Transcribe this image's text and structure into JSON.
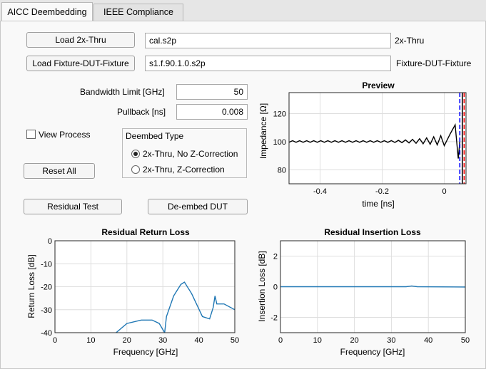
{
  "tabs": [
    {
      "label": "AICC Deembedding",
      "active": true
    },
    {
      "label": "IEEE Compliance",
      "active": false
    }
  ],
  "files": {
    "load_thru_label": "Load 2x-Thru",
    "thru_value": "cal.s2p",
    "thru_tag": "2x-Thru",
    "load_fixture_label": "Load Fixture-DUT-Fixture",
    "fixture_value": "s1.f.90.1.0.s2p",
    "fixture_tag": "Fixture-DUT-Fixture"
  },
  "params": {
    "bandwidth_label": "Bandwidth Limit [GHz]",
    "bandwidth_value": "50",
    "pullback_label": "Pullback [ns]",
    "pullback_value": "0.008"
  },
  "view_process": {
    "label": "View Process",
    "checked": false
  },
  "deembed_type": {
    "title": "Deembed Type",
    "options": [
      {
        "label": "2x-Thru, No Z-Correction",
        "selected": true
      },
      {
        "label": "2x-Thru, Z-Correction",
        "selected": false
      }
    ]
  },
  "buttons": {
    "reset": "Reset All",
    "residual": "Residual Test",
    "deembed": "De-embed DUT"
  },
  "chart_data": [
    {
      "type": "line",
      "title": "Preview",
      "xlabel": "time [ns]",
      "ylabel": "Impedance [Ω]",
      "xlim": [
        -0.5,
        0.07
      ],
      "ylim": [
        70,
        135
      ],
      "xticks": [
        "-0.4",
        "-0.2",
        "0"
      ],
      "yticks": [
        "80",
        "100",
        "120"
      ],
      "grid": true,
      "series": [
        {
          "color": "#000000",
          "x": [
            -0.5,
            0.0,
            0.02,
            0.035,
            0.045,
            0.05
          ],
          "y": [
            100,
            101,
            106,
            112,
            88,
            100
          ]
        }
      ],
      "markers": [
        {
          "x": 0.05,
          "color": "#0000ff"
        },
        {
          "x": 0.058,
          "color": "#000000"
        },
        {
          "x": 0.064,
          "color": "#ff0000"
        }
      ]
    },
    {
      "type": "line",
      "title": "Residual Return Loss",
      "xlabel": "Frequency [GHz]",
      "ylabel": "Return Loss [dB]",
      "xlim": [
        0,
        50
      ],
      "ylim": [
        -40,
        0
      ],
      "xticks": [
        "0",
        "10",
        "20",
        "30",
        "40",
        "50"
      ],
      "yticks": [
        "0",
        "-10",
        "-20",
        "-30",
        "-40"
      ],
      "grid": true,
      "series": [
        {
          "color": "#1f77b4",
          "x": [
            17,
            20,
            24,
            27,
            29,
            30.5,
            31,
            33,
            35,
            36,
            38,
            41,
            43,
            44,
            44.5,
            45,
            47,
            50
          ],
          "y": [
            -40,
            -36,
            -34.5,
            -34.5,
            -36,
            -40,
            -33,
            -24,
            -19,
            -18,
            -23,
            -33,
            -34,
            -29,
            -24,
            -27.5,
            -27.5,
            -30
          ]
        }
      ]
    },
    {
      "type": "line",
      "title": "Residual Insertion Loss",
      "xlabel": "Frequency [GHz]",
      "ylabel": "Insertion Loss [dB]",
      "xlim": [
        0,
        50
      ],
      "ylim": [
        -3,
        3
      ],
      "xticks": [
        "0",
        "10",
        "20",
        "30",
        "40",
        "50"
      ],
      "yticks": [
        "2",
        "0",
        "-2"
      ],
      "grid": true,
      "series": [
        {
          "color": "#1f77b4",
          "x": [
            0,
            30,
            34,
            35.5,
            37,
            50
          ],
          "y": [
            0,
            0,
            0,
            0.05,
            0,
            -0.02
          ]
        }
      ]
    }
  ]
}
